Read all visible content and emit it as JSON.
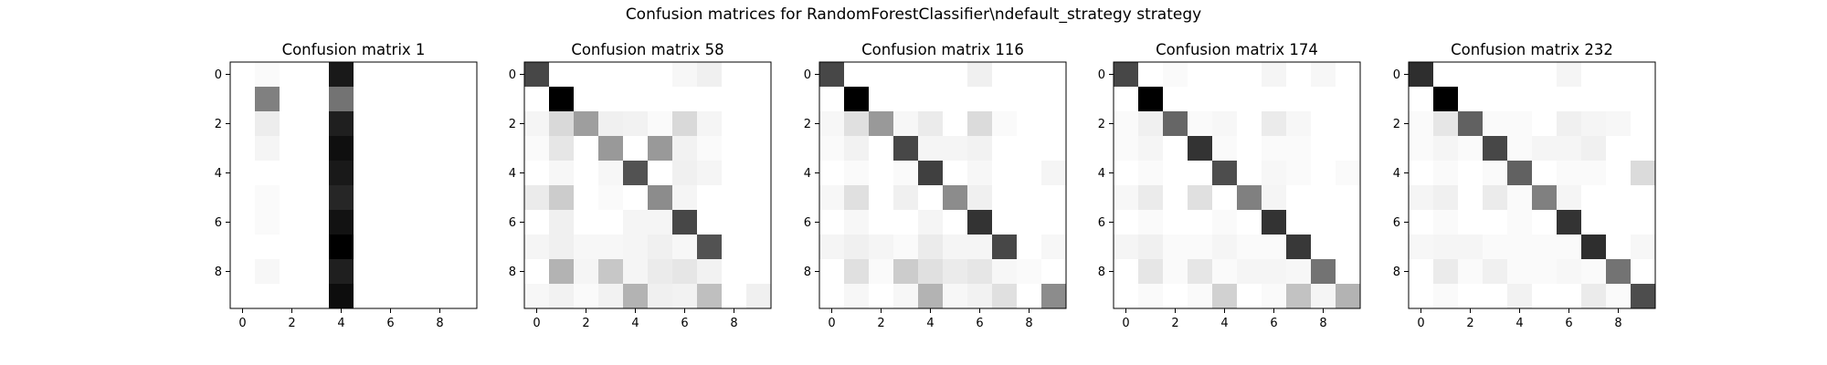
{
  "figure": {
    "title": "Confusion matrices for RandomForestClassifier\\ndefault_strategy strategy"
  },
  "chart_data": [
    {
      "type": "heatmap",
      "title": "Confusion matrix 1",
      "colormap": "gray_r",
      "x_ticks": [
        "0",
        "2",
        "4",
        "6",
        "8"
      ],
      "y_ticks": [
        "0",
        "2",
        "4",
        "6",
        "8"
      ],
      "matrix": [
        [
          0,
          0.02,
          0,
          0,
          0.9,
          0,
          0,
          0,
          0,
          0
        ],
        [
          0,
          0.5,
          0,
          0,
          0.55,
          0,
          0,
          0,
          0,
          0
        ],
        [
          0,
          0.07,
          0,
          0,
          0.88,
          0,
          0,
          0,
          0,
          0
        ],
        [
          0,
          0.04,
          0,
          0,
          0.94,
          0,
          0,
          0,
          0,
          0
        ],
        [
          0,
          0,
          0,
          0,
          0.9,
          0,
          0,
          0,
          0,
          0
        ],
        [
          0,
          0.02,
          0,
          0,
          0.85,
          0,
          0,
          0,
          0,
          0
        ],
        [
          0,
          0.02,
          0,
          0,
          0.93,
          0,
          0,
          0,
          0,
          0
        ],
        [
          0,
          0,
          0,
          0,
          1.0,
          0,
          0,
          0,
          0,
          0
        ],
        [
          0,
          0.03,
          0,
          0,
          0.88,
          0,
          0,
          0,
          0,
          0
        ],
        [
          0,
          0,
          0,
          0,
          0.95,
          0,
          0,
          0,
          0,
          0
        ]
      ]
    },
    {
      "type": "heatmap",
      "title": "Confusion matrix 58",
      "colormap": "gray_r",
      "x_ticks": [
        "0",
        "2",
        "4",
        "6",
        "8"
      ],
      "y_ticks": [
        "0",
        "2",
        "4",
        "6",
        "8"
      ],
      "matrix": [
        [
          0.72,
          0,
          0,
          0,
          0,
          0,
          0.03,
          0.06,
          0,
          0
        ],
        [
          0,
          1.0,
          0,
          0,
          0,
          0,
          0,
          0,
          0,
          0
        ],
        [
          0.04,
          0.15,
          0.38,
          0.06,
          0.05,
          0.02,
          0.15,
          0.04,
          0,
          0
        ],
        [
          0.02,
          0.1,
          0,
          0.4,
          0,
          0.4,
          0.05,
          0.02,
          0,
          0
        ],
        [
          0,
          0.03,
          0,
          0.03,
          0.68,
          0,
          0.06,
          0.04,
          0,
          0
        ],
        [
          0.08,
          0.2,
          0,
          0.02,
          0,
          0.45,
          0.04,
          0,
          0,
          0
        ],
        [
          0,
          0.06,
          0,
          0,
          0.04,
          0.04,
          0.72,
          0,
          0,
          0
        ],
        [
          0.04,
          0.06,
          0.03,
          0.03,
          0.04,
          0.06,
          0.03,
          0.68,
          0,
          0
        ],
        [
          0,
          0.3,
          0.04,
          0.22,
          0.04,
          0.08,
          0.1,
          0.05,
          0,
          0
        ],
        [
          0.03,
          0.05,
          0.02,
          0.05,
          0.3,
          0.06,
          0.05,
          0.25,
          0,
          0.06
        ]
      ]
    },
    {
      "type": "heatmap",
      "title": "Confusion matrix 116",
      "colormap": "gray_r",
      "x_ticks": [
        "0",
        "2",
        "4",
        "6",
        "8"
      ],
      "y_ticks": [
        "0",
        "2",
        "4",
        "6",
        "8"
      ],
      "matrix": [
        [
          0.72,
          0,
          0,
          0,
          0,
          0,
          0.06,
          0,
          0,
          0
        ],
        [
          0,
          1.0,
          0,
          0,
          0,
          0,
          0,
          0,
          0,
          0
        ],
        [
          0.03,
          0.12,
          0.4,
          0.03,
          0.08,
          0,
          0.14,
          0.02,
          0,
          0
        ],
        [
          0.02,
          0.05,
          0,
          0.72,
          0.04,
          0.04,
          0.05,
          0,
          0,
          0
        ],
        [
          0,
          0.02,
          0,
          0.02,
          0.75,
          0,
          0.03,
          0,
          0,
          0.04
        ],
        [
          0.03,
          0.12,
          0,
          0.06,
          0,
          0.45,
          0.06,
          0,
          0,
          0
        ],
        [
          0,
          0.03,
          0,
          0,
          0.04,
          0,
          0.8,
          0,
          0,
          0
        ],
        [
          0.04,
          0.06,
          0.04,
          0.02,
          0.08,
          0.04,
          0.04,
          0.72,
          0,
          0.03
        ],
        [
          0,
          0.12,
          0.02,
          0.2,
          0.12,
          0.08,
          0.1,
          0.03,
          0.02,
          0
        ],
        [
          0,
          0.03,
          0,
          0.03,
          0.3,
          0.03,
          0.05,
          0.12,
          0,
          0.45
        ]
      ]
    },
    {
      "type": "heatmap",
      "title": "Confusion matrix 174",
      "colormap": "gray_r",
      "x_ticks": [
        "0",
        "2",
        "4",
        "6",
        "8"
      ],
      "y_ticks": [
        "0",
        "2",
        "4",
        "6",
        "8"
      ],
      "matrix": [
        [
          0.72,
          0,
          0.02,
          0,
          0,
          0,
          0.04,
          0,
          0.03,
          0
        ],
        [
          0,
          1.0,
          0,
          0,
          0,
          0,
          0,
          0,
          0,
          0
        ],
        [
          0.02,
          0.06,
          0.6,
          0.02,
          0.03,
          0,
          0.08,
          0.03,
          0,
          0
        ],
        [
          0.02,
          0.04,
          0,
          0.8,
          0.02,
          0,
          0.02,
          0.02,
          0,
          0
        ],
        [
          0,
          0.02,
          0,
          0,
          0.7,
          0,
          0.03,
          0.02,
          0,
          0.02
        ],
        [
          0.03,
          0.08,
          0,
          0.12,
          0,
          0.5,
          0.04,
          0,
          0,
          0
        ],
        [
          0,
          0.02,
          0,
          0,
          0.02,
          0,
          0.8,
          0,
          0,
          0
        ],
        [
          0.04,
          0.06,
          0.02,
          0.02,
          0.04,
          0.02,
          0.02,
          0.78,
          0,
          0
        ],
        [
          0,
          0.1,
          0.02,
          0.1,
          0.02,
          0.04,
          0.04,
          0.03,
          0.55,
          0
        ],
        [
          0,
          0.02,
          0,
          0.02,
          0.18,
          0,
          0.02,
          0.24,
          0.04,
          0.3
        ]
      ]
    },
    {
      "type": "heatmap",
      "title": "Confusion matrix 232",
      "colormap": "gray_r",
      "x_ticks": [
        "0",
        "2",
        "4",
        "6",
        "8"
      ],
      "y_ticks": [
        "0",
        "2",
        "4",
        "6",
        "8"
      ],
      "matrix": [
        [
          0.82,
          0,
          0,
          0,
          0,
          0,
          0.04,
          0,
          0,
          0
        ],
        [
          0,
          1.0,
          0,
          0,
          0,
          0,
          0,
          0,
          0,
          0
        ],
        [
          0.02,
          0.1,
          0.62,
          0.02,
          0.02,
          0,
          0.06,
          0.04,
          0.03,
          0
        ],
        [
          0.02,
          0.04,
          0.02,
          0.72,
          0.02,
          0.04,
          0.04,
          0.06,
          0,
          0
        ],
        [
          0,
          0.02,
          0,
          0.02,
          0.62,
          0,
          0.02,
          0.02,
          0,
          0.14
        ],
        [
          0.04,
          0.06,
          0,
          0.08,
          0.02,
          0.5,
          0.04,
          0,
          0,
          0
        ],
        [
          0,
          0.02,
          0,
          0,
          0.02,
          0,
          0.8,
          0,
          0,
          0
        ],
        [
          0.03,
          0.04,
          0.04,
          0.02,
          0.02,
          0.02,
          0.02,
          0.82,
          0,
          0.03
        ],
        [
          0,
          0.08,
          0.02,
          0.06,
          0.02,
          0.02,
          0.03,
          0.02,
          0.55,
          0
        ],
        [
          0,
          0.02,
          0,
          0,
          0.05,
          0,
          0,
          0.08,
          0.02,
          0.7
        ]
      ]
    }
  ]
}
